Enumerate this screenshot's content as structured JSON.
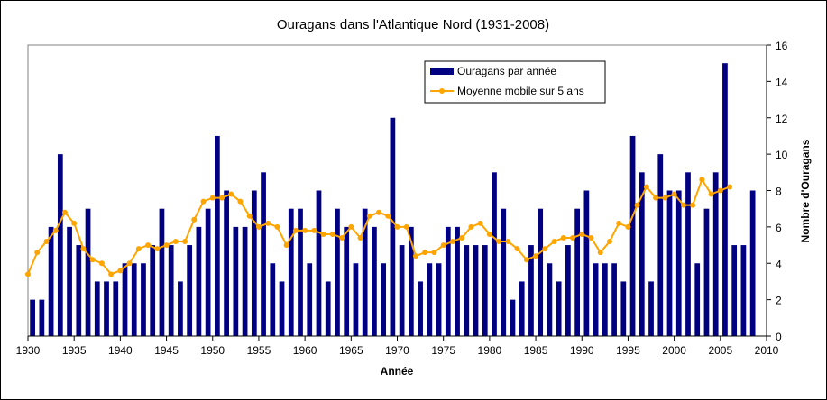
{
  "chart_data": {
    "type": "bar",
    "title": "Ouragans dans l'Atlantique Nord (1931-2008)",
    "xlabel": "Année",
    "ylabel": "Nombre d'Ouragans",
    "xlim": [
      1930,
      2010
    ],
    "ylim": [
      0,
      16
    ],
    "x_ticks": [
      1930,
      1935,
      1940,
      1945,
      1950,
      1955,
      1960,
      1965,
      1970,
      1975,
      1980,
      1985,
      1990,
      1995,
      2000,
      2005,
      2010
    ],
    "y_ticks": [
      0,
      2,
      4,
      6,
      8,
      10,
      12,
      14,
      16
    ],
    "y_axis_side": "right",
    "grid": false,
    "legend_position": "top-center",
    "colors": {
      "bars": "#000080",
      "line": "#FFA500",
      "plot_background": "#ffffff",
      "frame": "#000000"
    },
    "series": [
      {
        "name": "Ouragans par année",
        "type": "bar",
        "x": [
          1930,
          1931,
          1932,
          1933,
          1934,
          1935,
          1936,
          1937,
          1938,
          1939,
          1940,
          1941,
          1942,
          1943,
          1944,
          1945,
          1946,
          1947,
          1948,
          1949,
          1950,
          1951,
          1952,
          1953,
          1954,
          1955,
          1956,
          1957,
          1958,
          1959,
          1960,
          1961,
          1962,
          1963,
          1964,
          1965,
          1966,
          1967,
          1968,
          1969,
          1970,
          1971,
          1972,
          1973,
          1974,
          1975,
          1976,
          1977,
          1978,
          1979,
          1980,
          1981,
          1982,
          1983,
          1984,
          1985,
          1986,
          1987,
          1988,
          1989,
          1990,
          1991,
          1992,
          1993,
          1994,
          1995,
          1996,
          1997,
          1998,
          1999,
          2000,
          2001,
          2002,
          2003,
          2004,
          2005,
          2006,
          2007,
          2008
        ],
        "values": [
          2,
          2,
          6,
          10,
          6,
          5,
          7,
          3,
          3,
          3,
          4,
          4,
          4,
          5,
          7,
          5,
          3,
          5,
          6,
          7,
          11,
          8,
          6,
          6,
          8,
          9,
          4,
          3,
          7,
          7,
          4,
          8,
          3,
          7,
          6,
          4,
          7,
          6,
          4,
          12,
          5,
          6,
          3,
          4,
          4,
          6,
          6,
          5,
          5,
          5,
          9,
          7,
          2,
          3,
          5,
          7,
          4,
          3,
          5,
          7,
          8,
          4,
          4,
          4,
          3,
          11,
          9,
          3,
          10,
          8,
          8,
          9,
          4,
          7,
          9,
          15,
          5,
          5,
          8
        ]
      },
      {
        "name": "Moyenne mobile sur 5 ans",
        "type": "line",
        "x": [
          1930,
          1931,
          1932,
          1933,
          1934,
          1935,
          1936,
          1937,
          1938,
          1939,
          1940,
          1941,
          1942,
          1943,
          1944,
          1945,
          1946,
          1947,
          1948,
          1949,
          1950,
          1951,
          1952,
          1953,
          1954,
          1955,
          1956,
          1957,
          1958,
          1959,
          1960,
          1961,
          1962,
          1963,
          1964,
          1965,
          1966,
          1967,
          1968,
          1969,
          1970,
          1971,
          1972,
          1973,
          1974,
          1975,
          1976,
          1977,
          1978,
          1979,
          1980,
          1981,
          1982,
          1983,
          1984,
          1985,
          1986,
          1987,
          1988,
          1989,
          1990,
          1991,
          1992,
          1993,
          1994,
          1995,
          1996,
          1997,
          1998,
          1999,
          2000,
          2001,
          2002,
          2003,
          2004,
          2005,
          2006
        ],
        "values": [
          3.4,
          4.6,
          5.2,
          5.8,
          6.8,
          6.2,
          4.8,
          4.2,
          4.0,
          3.4,
          3.6,
          4.0,
          4.8,
          5.0,
          4.8,
          5.0,
          5.2,
          5.2,
          6.4,
          7.4,
          7.6,
          7.6,
          7.8,
          7.4,
          6.6,
          6.0,
          6.2,
          6.0,
          5.0,
          5.8,
          5.8,
          5.8,
          5.6,
          5.6,
          5.4,
          6.0,
          5.4,
          6.6,
          6.8,
          6.6,
          6.0,
          6.0,
          4.4,
          4.6,
          4.6,
          5.0,
          5.2,
          5.4,
          6.0,
          6.2,
          5.6,
          5.2,
          5.2,
          4.8,
          4.2,
          4.4,
          4.8,
          5.2,
          5.4,
          5.4,
          5.6,
          5.4,
          4.6,
          5.2,
          6.2,
          6.0,
          7.2,
          8.2,
          7.6,
          7.6,
          7.8,
          7.2,
          7.2,
          8.6,
          7.8,
          8.0,
          8.2
        ]
      }
    ]
  }
}
